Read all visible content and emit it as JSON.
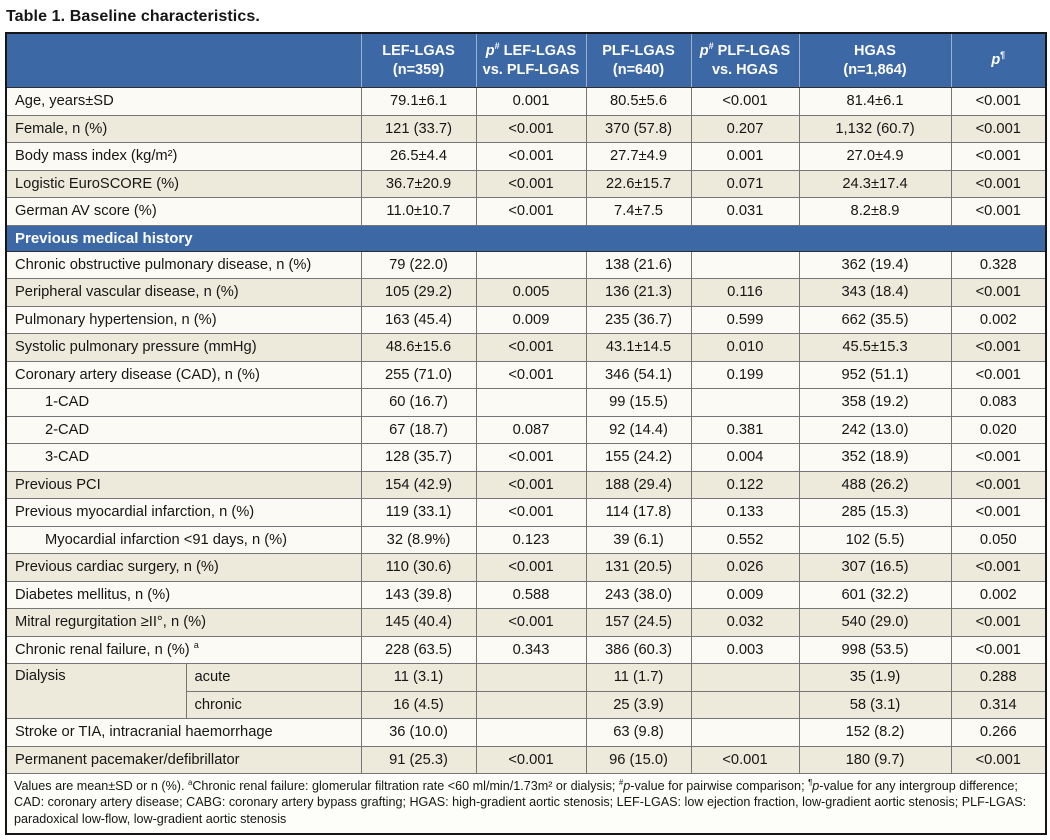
{
  "title": "Table 1. Baseline characteristics.",
  "colors": {
    "header_blue": "#3c68a5",
    "row_cream": "#edeadb",
    "row_white": "#fbfaf4",
    "border_dark": "#161616",
    "border_inner": "#767676",
    "header_divider": "#9fafca",
    "header_text": "#ffffff",
    "body_text": "#161616"
  },
  "table": {
    "header": [
      {
        "name": "col-variable",
        "segments": []
      },
      {
        "name": "col-lef-lgas",
        "segments": [
          {
            "t": "LEF-LGAS"
          },
          {
            "br": true
          },
          {
            "t": "(n=359)"
          }
        ]
      },
      {
        "name": "col-p-lef-vs-plf",
        "segments": [
          {
            "t": "p",
            "italic": true
          },
          {
            "t": "#",
            "sup": true
          },
          {
            "t": " LEF-LGAS"
          },
          {
            "br": true
          },
          {
            "t": "vs. PLF-LGAS"
          }
        ]
      },
      {
        "name": "col-plf-lgas",
        "segments": [
          {
            "t": "PLF-LGAS"
          },
          {
            "br": true
          },
          {
            "t": "(n=640)"
          }
        ]
      },
      {
        "name": "col-p-plf-vs-hgas",
        "segments": [
          {
            "t": "p",
            "italic": true
          },
          {
            "t": "#",
            "sup": true
          },
          {
            "t": " PLF-LGAS"
          },
          {
            "br": true
          },
          {
            "t": "vs. HGAS"
          }
        ]
      },
      {
        "name": "col-hgas",
        "segments": [
          {
            "t": "HGAS"
          },
          {
            "br": true
          },
          {
            "t": "(n=1,864)"
          }
        ]
      },
      {
        "name": "col-p-intergroup",
        "segments": [
          {
            "t": "p",
            "italic": true
          },
          {
            "t": "¶",
            "sup": true
          }
        ]
      }
    ],
    "rows": [
      {
        "type": "data",
        "shade": false,
        "indent": false,
        "label": "Age, years±SD",
        "values": [
          "79.1±6.1",
          "0.001",
          "80.5±5.6",
          "<0.001",
          "81.4±6.1",
          "<0.001"
        ]
      },
      {
        "type": "data",
        "shade": true,
        "indent": false,
        "label": "Female, n (%)",
        "values": [
          "121 (33.7)",
          "<0.001",
          "370 (57.8)",
          "0.207",
          "1,132 (60.7)",
          "<0.001"
        ]
      },
      {
        "type": "data",
        "shade": false,
        "indent": false,
        "label": "Body mass index (kg/m²)",
        "values": [
          "26.5±4.4",
          "<0.001",
          "27.7±4.9",
          "0.001",
          "27.0±4.9",
          "<0.001"
        ]
      },
      {
        "type": "data",
        "shade": true,
        "indent": false,
        "label": "Logistic EuroSCORE (%)",
        "values": [
          "36.7±20.9",
          "<0.001",
          "22.6±15.7",
          "0.071",
          "24.3±17.4",
          "<0.001"
        ]
      },
      {
        "type": "data",
        "shade": false,
        "indent": false,
        "label": "German AV score (%)",
        "values": [
          "11.0±10.7",
          "<0.001",
          "7.4±7.5",
          "0.031",
          "8.2±8.9",
          "<0.001"
        ]
      },
      {
        "type": "section",
        "label": "Previous medical history"
      },
      {
        "type": "data",
        "shade": false,
        "indent": false,
        "label": "Chronic obstructive pulmonary disease, n (%)",
        "values": [
          "79 (22.0)",
          "",
          "138 (21.6)",
          "",
          "362 (19.4)",
          "0.328"
        ]
      },
      {
        "type": "data",
        "shade": true,
        "indent": false,
        "label": "Peripheral vascular disease, n (%)",
        "values": [
          "105 (29.2)",
          "0.005",
          "136 (21.3)",
          "0.116",
          "343 (18.4)",
          "<0.001"
        ]
      },
      {
        "type": "data",
        "shade": false,
        "indent": false,
        "label": "Pulmonary hypertension, n (%)",
        "values": [
          "163 (45.4)",
          "0.009",
          "235 (36.7)",
          "0.599",
          "662 (35.5)",
          "0.002"
        ]
      },
      {
        "type": "data",
        "shade": true,
        "indent": false,
        "label": "Systolic pulmonary pressure (mmHg)",
        "values": [
          "48.6±15.6",
          "<0.001",
          "43.1±14.5",
          "0.010",
          "45.5±15.3",
          "<0.001"
        ]
      },
      {
        "type": "data",
        "shade": false,
        "indent": false,
        "label": "Coronary artery disease (CAD), n (%)",
        "values": [
          "255 (71.0)",
          "<0.001",
          "346 (54.1)",
          "0.199",
          "952 (51.1)",
          "<0.001"
        ]
      },
      {
        "type": "data",
        "shade": false,
        "indent": true,
        "label": "1-CAD",
        "values": [
          "60 (16.7)",
          "",
          "99 (15.5)",
          "",
          "358 (19.2)",
          "0.083"
        ]
      },
      {
        "type": "data",
        "shade": false,
        "indent": true,
        "label": "2-CAD",
        "values": [
          "67 (18.7)",
          "0.087",
          "92 (14.4)",
          "0.381",
          "242 (13.0)",
          "0.020"
        ]
      },
      {
        "type": "data",
        "shade": false,
        "indent": true,
        "label": "3-CAD",
        "values": [
          "128 (35.7)",
          "<0.001",
          "155 (24.2)",
          "0.004",
          "352 (18.9)",
          "<0.001"
        ]
      },
      {
        "type": "data",
        "shade": true,
        "indent": false,
        "label": "Previous PCI",
        "values": [
          "154 (42.9)",
          "<0.001",
          "188 (29.4)",
          "0.122",
          "488 (26.2)",
          "<0.001"
        ]
      },
      {
        "type": "data",
        "shade": false,
        "indent": false,
        "label": "Previous myocardial infarction, n (%)",
        "values": [
          "119 (33.1)",
          "<0.001",
          "114 (17.8)",
          "0.133",
          "285 (15.3)",
          "<0.001"
        ]
      },
      {
        "type": "data",
        "shade": false,
        "indent": true,
        "label": "Myocardial infarction <91 days, n (%)",
        "values": [
          "32 (8.9%)",
          "0.123",
          "39 (6.1)",
          "0.552",
          "102 (5.5)",
          "0.050"
        ]
      },
      {
        "type": "data",
        "shade": true,
        "indent": false,
        "label": "Previous cardiac surgery, n (%)",
        "values": [
          "110 (30.6)",
          "<0.001",
          "131 (20.5)",
          "0.026",
          "307 (16.5)",
          "<0.001"
        ]
      },
      {
        "type": "data",
        "shade": false,
        "indent": false,
        "label": "Diabetes mellitus, n (%)",
        "values": [
          "143 (39.8)",
          "0.588",
          "243 (38.0)",
          "0.009",
          "601 (32.2)",
          "0.002"
        ]
      },
      {
        "type": "data",
        "shade": true,
        "indent": false,
        "label": "Mitral regurgitation ≥II°, n (%)",
        "values": [
          "145 (40.4)",
          "<0.001",
          "157 (24.5)",
          "0.032",
          "540 (29.0)",
          "<0.001"
        ]
      },
      {
        "type": "data",
        "shade": false,
        "indent": false,
        "label": "Chronic renal failure, n (%) ",
        "label_sup": "a",
        "values": [
          "228 (63.5)",
          "0.343",
          "386 (60.3)",
          "0.003",
          "998 (53.5)",
          "<0.001"
        ]
      },
      {
        "type": "split",
        "shade": true,
        "label": "Dialysis",
        "subrows": [
          {
            "sub": "acute",
            "values": [
              "11 (3.1)",
              "",
              "11 (1.7)",
              "",
              "35 (1.9)",
              "0.288"
            ]
          },
          {
            "sub": "chronic",
            "values": [
              "16 (4.5)",
              "",
              "25 (3.9)",
              "",
              "58 (3.1)",
              "0.314"
            ]
          }
        ]
      },
      {
        "type": "data",
        "shade": false,
        "indent": false,
        "label": "Stroke or TIA, intracranial haemorrhage",
        "values": [
          "36 (10.0)",
          "",
          "63 (9.8)",
          "",
          "152 (8.2)",
          "0.266"
        ]
      },
      {
        "type": "data",
        "shade": true,
        "indent": false,
        "label": "Permanent pacemaker/defibrillator",
        "values": [
          "91 (25.3)",
          "<0.001",
          "96 (15.0)",
          "<0.001",
          "180 (9.7)",
          "<0.001"
        ]
      }
    ],
    "footnote": {
      "segments": [
        {
          "t": "Values are mean±SD or n (%). "
        },
        {
          "t": "a",
          "sup": true
        },
        {
          "t": "Chronic renal failure: glomerular filtration rate <60 ml/min/1.73m² or dialysis; "
        },
        {
          "t": "#",
          "sup": true
        },
        {
          "t": "p",
          "italic": true
        },
        {
          "t": "-value for pairwise comparison; "
        },
        {
          "t": "¶",
          "sup": true
        },
        {
          "t": "p",
          "italic": true
        },
        {
          "t": "-value for any intergroup difference; CAD: coronary artery disease; CABG: coronary artery bypass grafting; HGAS: high-gradient aortic stenosis; LEF-LGAS: low ejection fraction, low-gradient aortic stenosis; PLF-LGAS: paradoxical low-flow, low-gradient aortic stenosis"
        }
      ]
    }
  }
}
